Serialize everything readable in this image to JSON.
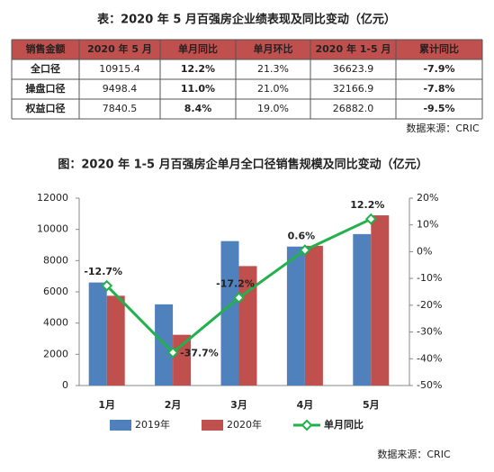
{
  "table": {
    "title": "表：2020 年 5 月百强房企业绩表现及同比变动（亿元）",
    "header": [
      "销售金额",
      "2020 年 5 月",
      "单月同比",
      "单月环比",
      "2020 年 1-5 月",
      "累计同比"
    ],
    "rows": [
      [
        "全口径",
        "10915.4",
        "12.2%",
        "21.3%",
        "36623.9",
        "-7.9%"
      ],
      [
        "操盘口径",
        "9498.4",
        "11.0%",
        "21.0%",
        "32166.9",
        "-7.8%"
      ],
      [
        "权益口径",
        "7840.5",
        "8.4%",
        "19.0%",
        "26882.0",
        "-9.5%"
      ]
    ],
    "header_color": "#c0504d",
    "source": "数据来源：CRIC"
  },
  "chart_data": {
    "type": "bar-line",
    "title": "图：2020 年 1-5 月百强房企单月全口径销售规模及同比变动（亿元）",
    "categories": [
      "1月",
      "2月",
      "3月",
      "4月",
      "5月"
    ],
    "series": [
      {
        "name": "2019年",
        "color": "#4f81bd",
        "values": [
          6600,
          5200,
          9250,
          8900,
          9700
        ]
      },
      {
        "name": "2020年",
        "color": "#c0504d",
        "values": [
          5750,
          3250,
          7650,
          8950,
          10900
        ]
      },
      {
        "name": "单月同比",
        "color": "#22b14c",
        "axis": "y2",
        "values": [
          -12.7,
          -37.7,
          -17.2,
          0.6,
          12.2
        ],
        "value_labels": [
          "-12.7%",
          "-37.7%",
          "-17.2%",
          "0.6%",
          "12.2%"
        ]
      }
    ],
    "ylim": [
      0,
      12000
    ],
    "yticks": [
      0,
      2000,
      4000,
      6000,
      8000,
      10000,
      12000
    ],
    "y2lim": [
      -50,
      20
    ],
    "y2ticks": [
      {
        "value": -50,
        "label": "-50%"
      },
      {
        "value": -40,
        "label": "-40%"
      },
      {
        "value": -30,
        "label": "-30%"
      },
      {
        "value": -20,
        "label": "-20%"
      },
      {
        "value": -10,
        "label": "-10%"
      },
      {
        "value": 0,
        "label": "0%"
      },
      {
        "value": 10,
        "label": "10%"
      },
      {
        "value": 20,
        "label": "20%"
      }
    ],
    "source": "数据来源：CRIC"
  }
}
